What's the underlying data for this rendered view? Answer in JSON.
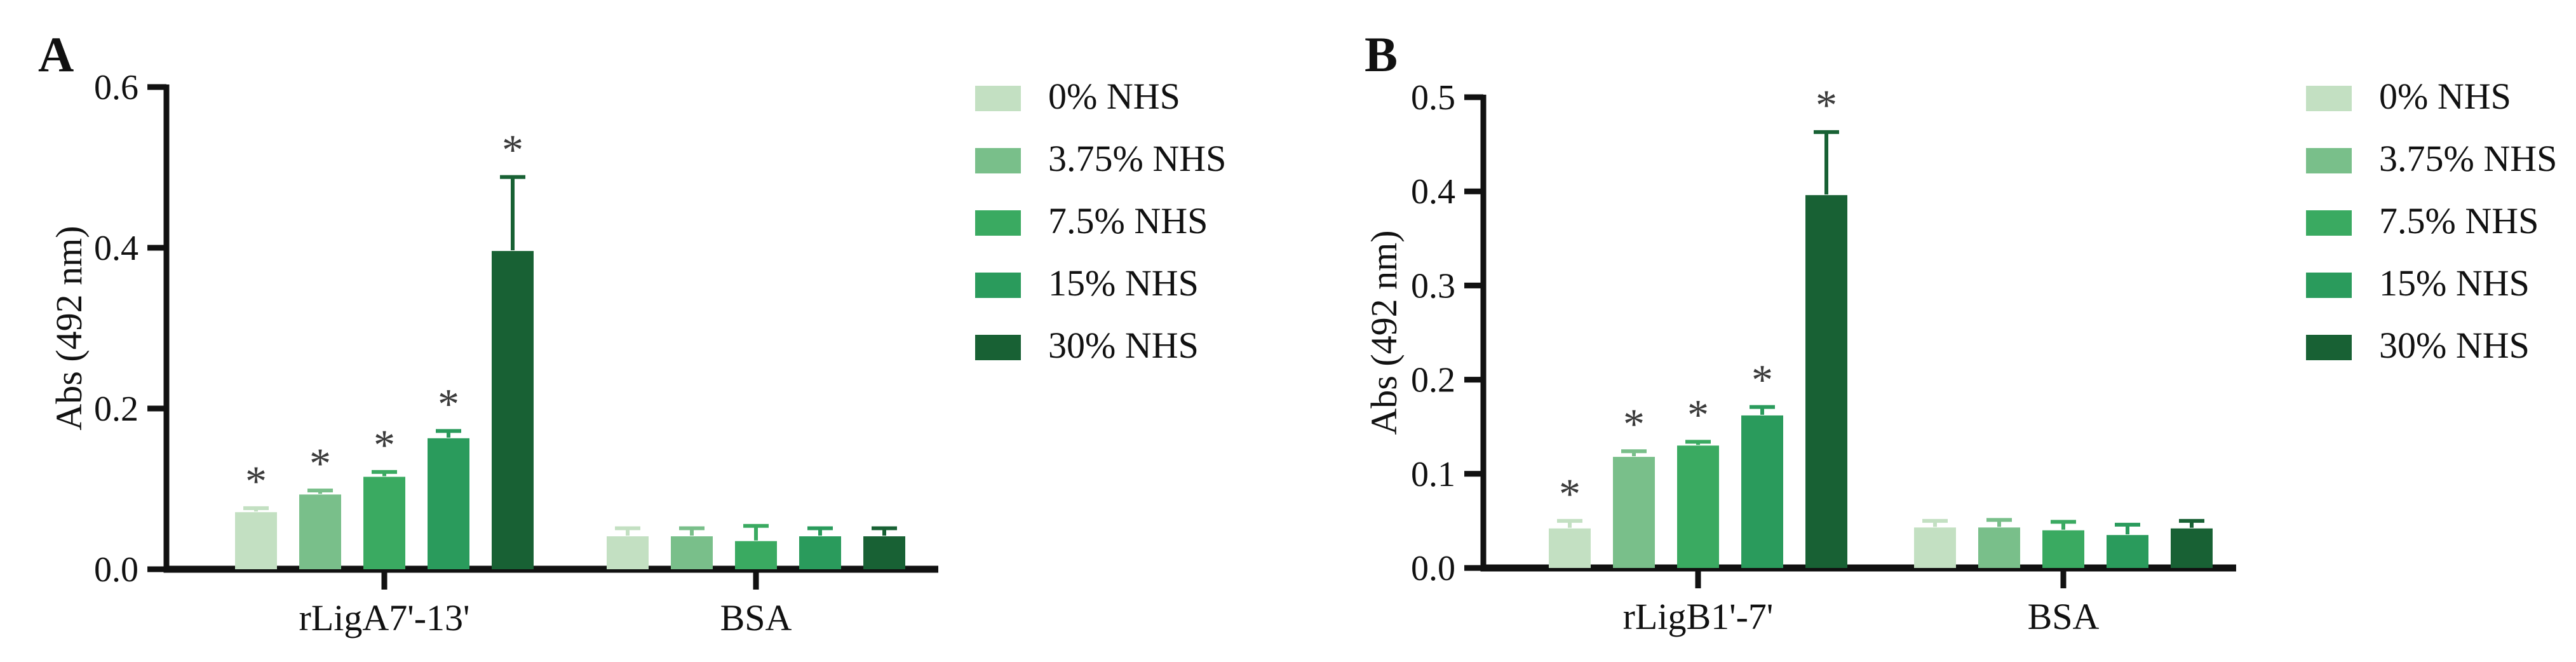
{
  "figure": {
    "background": "#ffffff",
    "axis_color": "#111111",
    "star_color": "#3b3b3b",
    "star_symbol": "*",
    "series_colors": [
      "#c3e0c2",
      "#79bf8a",
      "#3aaa61",
      "#2a9b5c",
      "#186134"
    ],
    "legend_labels": [
      "0% NHS",
      "3.75% NHS",
      "7.5% NHS",
      "15% NHS",
      "30% NHS"
    ]
  },
  "chart_data": [
    {
      "type": "bar",
      "panel_label": "A",
      "title": "",
      "xlabel": "",
      "ylabel": "Abs (492 nm)",
      "ylim": [
        0,
        0.6
      ],
      "ytick_values": [
        0.0,
        0.2,
        0.4,
        0.6
      ],
      "ytick_labels": [
        "0.0",
        "0.2",
        "0.4",
        "0.6"
      ],
      "grid": false,
      "legend_position": "right",
      "categories": [
        "rLigA7'-13'",
        "BSA"
      ],
      "series": [
        {
          "name": "0% NHS",
          "values": [
            0.071,
            0.041
          ],
          "errors": [
            0.005,
            0.01
          ],
          "significant": [
            true,
            false
          ]
        },
        {
          "name": "3.75% NHS",
          "values": [
            0.093,
            0.041
          ],
          "errors": [
            0.005,
            0.01
          ],
          "significant": [
            true,
            false
          ]
        },
        {
          "name": "7.5% NHS",
          "values": [
            0.115,
            0.035
          ],
          "errors": [
            0.006,
            0.019
          ],
          "significant": [
            true,
            false
          ]
        },
        {
          "name": "15% NHS",
          "values": [
            0.163,
            0.041
          ],
          "errors": [
            0.009,
            0.01
          ],
          "significant": [
            true,
            false
          ]
        },
        {
          "name": "30% NHS",
          "values": [
            0.396,
            0.041
          ],
          "errors": [
            0.092,
            0.01
          ],
          "significant": [
            true,
            false
          ]
        }
      ]
    },
    {
      "type": "bar",
      "panel_label": "B",
      "title": "",
      "xlabel": "",
      "ylabel": "Abs (492 nm)",
      "ylim": [
        0,
        0.5
      ],
      "ytick_values": [
        0.0,
        0.1,
        0.2,
        0.3,
        0.4,
        0.5
      ],
      "ytick_labels": [
        "0.0",
        "0.1",
        "0.2",
        "0.3",
        "0.4",
        "0.5"
      ],
      "grid": false,
      "legend_position": "right",
      "categories": [
        "rLigB1'-7'",
        "BSA"
      ],
      "series": [
        {
          "name": "0% NHS",
          "values": [
            0.042,
            0.043
          ],
          "errors": [
            0.008,
            0.007
          ],
          "significant": [
            true,
            false
          ]
        },
        {
          "name": "3.75% NHS",
          "values": [
            0.118,
            0.043
          ],
          "errors": [
            0.006,
            0.008
          ],
          "significant": [
            true,
            false
          ]
        },
        {
          "name": "7.5% NHS",
          "values": [
            0.13,
            0.04
          ],
          "errors": [
            0.004,
            0.009
          ],
          "significant": [
            true,
            false
          ]
        },
        {
          "name": "15% NHS",
          "values": [
            0.162,
            0.035
          ],
          "errors": [
            0.009,
            0.011
          ],
          "significant": [
            true,
            false
          ]
        },
        {
          "name": "30% NHS",
          "values": [
            0.396,
            0.042
          ],
          "errors": [
            0.067,
            0.008
          ],
          "significant": [
            true,
            false
          ]
        }
      ]
    }
  ]
}
